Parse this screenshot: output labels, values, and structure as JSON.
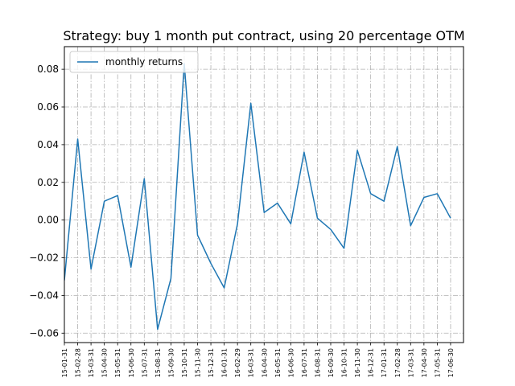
{
  "chart_data": {
    "type": "line",
    "title": "Strategy: buy 1 month put contract, using 20 percentage OTM",
    "xlabel": "",
    "ylabel": "",
    "x": [
      "2015-01-31",
      "2015-02-28",
      "2015-03-31",
      "2015-04-30",
      "2015-05-31",
      "2015-06-30",
      "2015-07-31",
      "2015-08-31",
      "2015-09-30",
      "2015-10-31",
      "2015-11-30",
      "2015-12-31",
      "2016-01-31",
      "2016-02-29",
      "2016-03-31",
      "2016-04-30",
      "2016-05-31",
      "2016-06-30",
      "2016-07-31",
      "2016-08-31",
      "2016-09-30",
      "2016-10-31",
      "2016-11-30",
      "2016-12-31",
      "2017-01-31",
      "2017-02-28",
      "2017-03-31",
      "2017-04-30",
      "2017-05-31",
      "2017-06-30"
    ],
    "x_tick_labels": [
      "15-01-31",
      "15-02-28",
      "15-03-31",
      "15-04-30",
      "15-05-31",
      "15-06-30",
      "15-07-31",
      "15-08-31",
      "15-09-30",
      "15-10-31",
      "15-11-30",
      "15-12-31",
      "16-01-31",
      "16-02-29",
      "16-03-31",
      "16-04-30",
      "16-05-31",
      "16-06-30",
      "16-07-31",
      "16-08-31",
      "16-09-30",
      "16-10-31",
      "16-11-30",
      "16-12-31",
      "17-01-31",
      "17-02-28",
      "17-03-31",
      "17-04-30",
      "17-05-31",
      "17-06-30"
    ],
    "series": [
      {
        "name": "monthly returns",
        "color": "#1f77b4",
        "values": [
          -0.032,
          0.043,
          -0.026,
          0.01,
          0.013,
          -0.025,
          0.022,
          -0.058,
          -0.031,
          0.083,
          -0.008,
          -0.023,
          -0.036,
          -0.002,
          0.062,
          0.004,
          0.009,
          -0.002,
          0.036,
          0.001,
          -0.005,
          -0.015,
          0.037,
          0.014,
          0.01,
          0.039,
          -0.003,
          0.012,
          0.014,
          0.001
        ]
      }
    ],
    "ylim": [
      -0.065,
      0.092
    ],
    "y_ticks": [
      -0.06,
      -0.04,
      -0.02,
      0.0,
      0.02,
      0.04,
      0.06,
      0.08
    ],
    "y_tick_labels": [
      "−0.06",
      "−0.04",
      "−0.02",
      "0.00",
      "0.02",
      "0.04",
      "0.06",
      "0.08"
    ],
    "grid": true,
    "grid_style": "dash-dot",
    "legend_position": "top-left"
  }
}
